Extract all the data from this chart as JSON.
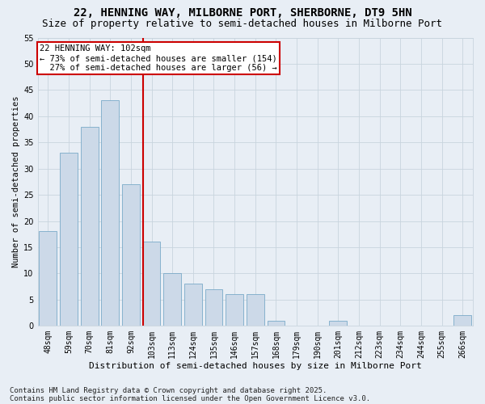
{
  "title": "22, HENNING WAY, MILBORNE PORT, SHERBORNE, DT9 5HN",
  "subtitle": "Size of property relative to semi-detached houses in Milborne Port",
  "xlabel": "Distribution of semi-detached houses by size in Milborne Port",
  "ylabel": "Number of semi-detached properties",
  "categories": [
    "48sqm",
    "59sqm",
    "70sqm",
    "81sqm",
    "92sqm",
    "103sqm",
    "113sqm",
    "124sqm",
    "135sqm",
    "146sqm",
    "157sqm",
    "168sqm",
    "179sqm",
    "190sqm",
    "201sqm",
    "212sqm",
    "223sqm",
    "234sqm",
    "244sqm",
    "255sqm",
    "266sqm"
  ],
  "values": [
    18,
    33,
    38,
    43,
    27,
    16,
    10,
    8,
    7,
    6,
    6,
    1,
    0,
    0,
    1,
    0,
    0,
    0,
    0,
    0,
    2
  ],
  "bar_color": "#ccd9e8",
  "bar_edge_color": "#7aaac8",
  "grid_color": "#c8d4de",
  "background_color": "#e8eef5",
  "marker_line_index": 5,
  "annotation_line1": "22 HENNING WAY: 102sqm",
  "annotation_line2": "← 73% of semi-detached houses are smaller (154)",
  "annotation_line3": "  27% of semi-detached houses are larger (56) →",
  "annotation_box_color": "#ffffff",
  "annotation_box_edge": "#cc0000",
  "red_line_color": "#cc0000",
  "ylim": [
    0,
    55
  ],
  "yticks": [
    0,
    5,
    10,
    15,
    20,
    25,
    30,
    35,
    40,
    45,
    50,
    55
  ],
  "footer": "Contains HM Land Registry data © Crown copyright and database right 2025.\nContains public sector information licensed under the Open Government Licence v3.0.",
  "title_fontsize": 10,
  "subtitle_fontsize": 9,
  "xlabel_fontsize": 8,
  "ylabel_fontsize": 7.5,
  "tick_fontsize": 7,
  "annotation_fontsize": 7.5,
  "footer_fontsize": 6.5
}
